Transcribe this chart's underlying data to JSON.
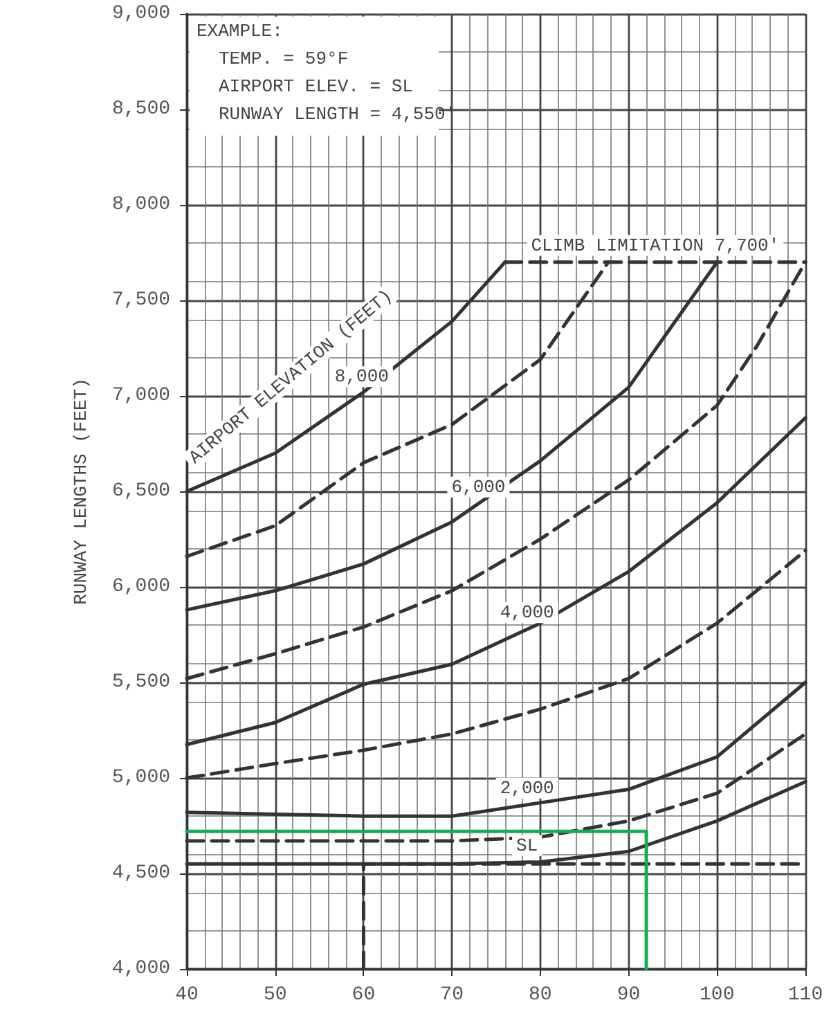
{
  "chart_data": {
    "type": "line",
    "ylabel": "RUNWAY LENGTHS (FEET)",
    "xlim": [
      40,
      110
    ],
    "xticks": [
      40,
      50,
      60,
      70,
      80,
      90,
      100,
      110
    ],
    "ylim": [
      4000,
      9000
    ],
    "yticks": [
      {
        "value": 4000,
        "label": "4,000"
      },
      {
        "value": 4500,
        "label": "4,500"
      },
      {
        "value": 5000,
        "label": "5,000"
      },
      {
        "value": 5500,
        "label": "5,500"
      },
      {
        "value": 6000,
        "label": "6,000"
      },
      {
        "value": 6500,
        "label": "6,500"
      },
      {
        "value": 7000,
        "label": "7,000"
      },
      {
        "value": 7500,
        "label": "7,500"
      },
      {
        "value": 8000,
        "label": "8,000"
      },
      {
        "value": 8500,
        "label": "8,500"
      },
      {
        "value": 9000,
        "label": "9,000"
      }
    ],
    "grid": true,
    "marker": "none",
    "series": [
      {
        "name": "8,000",
        "color": "#333333",
        "line_style": "solid",
        "x": [
          40,
          50,
          60,
          70,
          76
        ],
        "values": [
          6500,
          6700,
          7020,
          7390,
          7700
        ]
      },
      {
        "color": "#333333",
        "line_style": "dashed",
        "x": [
          40,
          50,
          60,
          70,
          80,
          87.7
        ],
        "values": [
          6160,
          6320,
          6650,
          6850,
          7190,
          7700
        ]
      },
      {
        "name": "6,000",
        "color": "#333333",
        "line_style": "solid",
        "x": [
          40,
          50,
          60,
          70,
          80,
          90,
          100
        ],
        "values": [
          5880,
          5980,
          6120,
          6340,
          6660,
          7045,
          7700
        ]
      },
      {
        "color": "#333333",
        "line_style": "dashed",
        "x": [
          40,
          50,
          60,
          70,
          80,
          90,
          100,
          104.5,
          110
        ],
        "values": [
          5520,
          5650,
          5790,
          5980,
          6250,
          6560,
          6950,
          7260,
          7700
        ]
      },
      {
        "name": "4,000",
        "color": "#333333",
        "line_style": "solid",
        "x": [
          40,
          50,
          60,
          70,
          80,
          90,
          100,
          110
        ],
        "values": [
          5175,
          5290,
          5490,
          5595,
          5810,
          6080,
          6440,
          6885
        ]
      },
      {
        "color": "#333333",
        "line_style": "dashed",
        "x": [
          40,
          50,
          60,
          70,
          80,
          90,
          100,
          110
        ],
        "values": [
          5000,
          5075,
          5145,
          5230,
          5360,
          5520,
          5810,
          6190
        ]
      },
      {
        "name": "2,000",
        "color": "#333333",
        "line_style": "solid",
        "x": [
          40,
          50,
          60,
          70,
          80,
          90,
          100,
          110
        ],
        "values": [
          4820,
          4810,
          4800,
          4800,
          4870,
          4940,
          5110,
          5500
        ]
      },
      {
        "color": "#333333",
        "line_style": "dashed",
        "x": [
          40,
          50,
          60,
          70,
          80,
          90,
          100,
          110
        ],
        "values": [
          4670,
          4670,
          4670,
          4670,
          4690,
          4775,
          4920,
          5230
        ]
      },
      {
        "name": "SL",
        "color": "#333333",
        "line_style": "solid",
        "x": [
          40,
          50,
          60,
          70,
          80,
          90,
          100,
          110
        ],
        "values": [
          4550,
          4550,
          4550,
          4550,
          4560,
          4615,
          4775,
          4980
        ]
      },
      {
        "name": "CLIMB LIMITATION 7,700'",
        "color": "#333333",
        "line_style": "dashed",
        "x": [
          76,
          110
        ],
        "values": [
          7700,
          7700
        ]
      },
      {
        "color": "#333333",
        "line_style": "dashed",
        "x": [
          60,
          60,
          110
        ],
        "values": [
          4000,
          4550,
          4550
        ]
      },
      {
        "color": "#1aaa55",
        "line_style": "solid",
        "x": [
          92,
          92,
          40
        ],
        "values": [
          4000,
          4720,
          4720
        ]
      }
    ],
    "legend_title": "AIRPORT ELEVATION (FEET)",
    "annotations": [
      "EXAMPLE:",
      "TEMP. = 59°F",
      "AIRPORT ELEV. = SL",
      "RUNWAY LENGTH = 4,550'"
    ]
  }
}
